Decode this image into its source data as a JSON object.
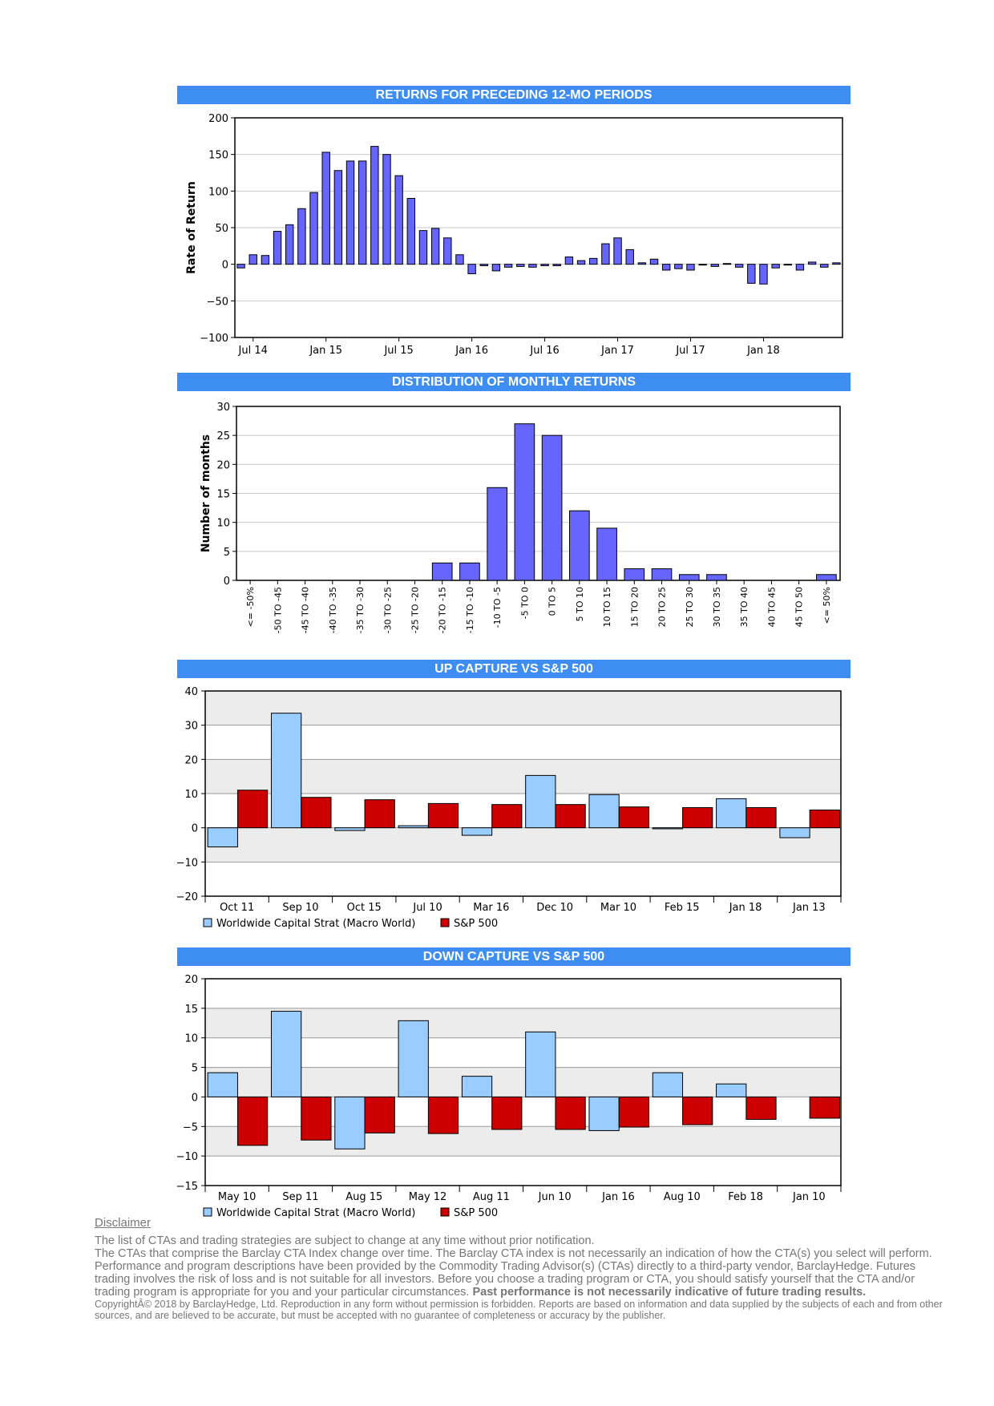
{
  "headers": {
    "returns": "RETURNS FOR PRECEDING 12-MO PERIODS",
    "distribution": "DISTRIBUTION OF MONTHLY RETURNS",
    "up_capture": "UP CAPTURE VS S&P 500",
    "down_capture": "DOWN CAPTURE VS S&P 500"
  },
  "colors": {
    "header_bg": "#3d8df3",
    "bar_purple": "#6666ff",
    "fund_light_blue": "#99ccff",
    "sp500_red": "#cc0000"
  },
  "chart_data": [
    {
      "id": "returns",
      "type": "bar",
      "title": "RETURNS FOR PRECEDING 12-MO PERIODS",
      "ylabel": "Rate of Return",
      "ylim": [
        -100,
        200
      ],
      "yticks": [
        200,
        150,
        100,
        50,
        0,
        -50,
        -100
      ],
      "xtick_labels": [
        "Jul 14",
        "Jan 15",
        "Jul 15",
        "Jan 16",
        "Jul 16",
        "Jan 17",
        "Jul 17",
        "Jan 18"
      ],
      "xtick_index": [
        1,
        7,
        13,
        19,
        25,
        31,
        37,
        43
      ],
      "values": [
        -5,
        13,
        12,
        45,
        54,
        76,
        98,
        153,
        128,
        141,
        141,
        161,
        150,
        121,
        90,
        46,
        49,
        36,
        13,
        -13,
        -2,
        -9,
        -4,
        -3,
        -4,
        -2,
        -2,
        10,
        5,
        8,
        28,
        36,
        20,
        2,
        7,
        -8,
        -6,
        -8,
        -1,
        -3,
        1,
        -4,
        -26,
        -27,
        -5,
        -1,
        -8,
        3,
        -4,
        2
      ]
    },
    {
      "id": "distribution",
      "type": "bar",
      "title": "DISTRIBUTION OF MONTHLY RETURNS",
      "ylabel": "Number of months",
      "ylim": [
        0,
        30
      ],
      "yticks": [
        30,
        25,
        20,
        15,
        10,
        5,
        0
      ],
      "categories": [
        "<= -50%",
        "-50 TO -45",
        "-45 TO -40",
        "-40 TO -35",
        "-35 TO -30",
        "-30 TO -25",
        "-25 TO -20",
        "-20 TO -15",
        "-15 TO -10",
        "-10 TO -5",
        "-5 TO 0",
        "0 TO 5",
        "5 TO 10",
        "10 TO 15",
        "15 TO 20",
        "20 TO 25",
        "25 TO 30",
        "30 TO 35",
        "35 TO 40",
        "40 TO 45",
        "45 TO 50",
        "<= 50%"
      ],
      "values": [
        0,
        0,
        0,
        0,
        0,
        0,
        0,
        3,
        3,
        16,
        27,
        25,
        12,
        9,
        2,
        2,
        1,
        1,
        0,
        0,
        0,
        1
      ]
    },
    {
      "id": "up_capture",
      "type": "bar",
      "title": "UP CAPTURE VS S&P 500",
      "ylim": [
        -20,
        40
      ],
      "yticks": [
        40,
        30,
        20,
        10,
        0,
        -10,
        -20
      ],
      "categories": [
        "Oct 11",
        "Sep 10",
        "Oct 15",
        "Jul 10",
        "Mar 16",
        "Dec 10",
        "Mar 10",
        "Feb 15",
        "Jan 18",
        "Jan 13"
      ],
      "series": [
        {
          "name": "Worldwide Capital Strat (Macro World)",
          "values": [
            -5.6,
            33.5,
            -0.8,
            0.6,
            -2.2,
            15.3,
            9.7,
            -0.3,
            8.5,
            -2.9
          ]
        },
        {
          "name": "S&P 500",
          "values": [
            11,
            8.9,
            8.2,
            7.1,
            6.8,
            6.8,
            6.1,
            5.9,
            5.9,
            5.2
          ]
        }
      ]
    },
    {
      "id": "down_capture",
      "type": "bar",
      "title": "DOWN CAPTURE VS S&P 500",
      "ylim": [
        -15,
        20
      ],
      "yticks": [
        20,
        15,
        10,
        5,
        0,
        -5,
        -10,
        -15
      ],
      "categories": [
        "May 10",
        "Sep 11",
        "Aug 15",
        "May 12",
        "Aug 11",
        "Jun 10",
        "Jan 16",
        "Aug 10",
        "Feb 18",
        "Jan 10"
      ],
      "series": [
        {
          "name": "Worldwide Capital Strat (Macro World)",
          "values": [
            4.1,
            14.5,
            -8.8,
            12.9,
            3.5,
            11,
            -5.7,
            4.1,
            2.2,
            0
          ]
        },
        {
          "name": "S&P 500",
          "values": [
            -8.2,
            -7.3,
            -6.1,
            -6.2,
            -5.5,
            -5.5,
            -5.1,
            -4.7,
            -3.8,
            -3.6
          ]
        }
      ]
    }
  ],
  "disclaimer": {
    "title": "Disclaimer",
    "line1": "The list of CTAs and trading strategies are subject to change at any time without prior notification.",
    "line2": "The CTAs that comprise the Barclay CTA Index change over time.  The Barclay CTA index is not necessarily an indication of how the CTA(s) you select will perform.",
    "line3": "Performance and program descriptions have been provided by the Commodity Trading Advisor(s) (CTAs) directly to a third-party vendor, BarclayHedge. Futures trading involves the risk of loss and is not suitable for all investors.  Before you choose a trading program or CTA, you should satisfy yourself that the CTA and/or trading program is appropriate for you and your particular circumstances.",
    "line3_bold": "Past performance is not necessarily indicative of future trading results.",
    "copyright": "CopyrightÂ©  2018 by BarclayHedge, Ltd. Reproduction in any form without permission is forbidden. Reports are based on information and data supplied by the subjects of each and from other sources, and are believed to be accurate, but must be accepted with no guarantee of completeness or accuracy by the publisher."
  }
}
